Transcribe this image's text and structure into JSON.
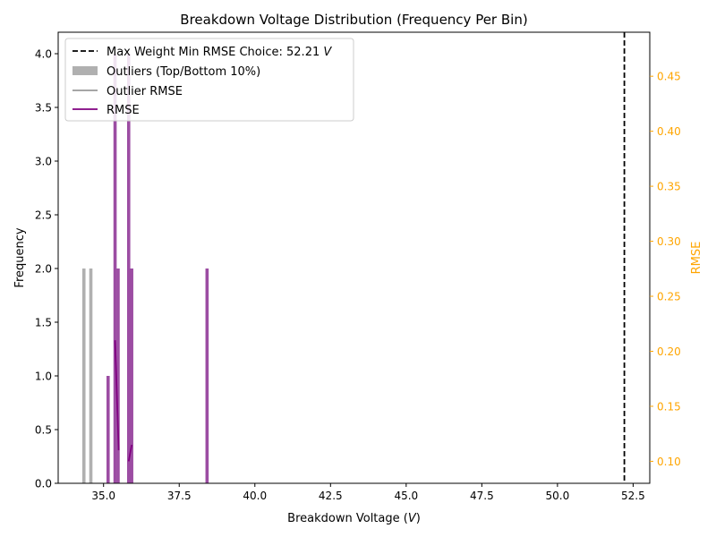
{
  "chart_data": {
    "type": "bar",
    "title": "Breakdown Voltage Distribution (Frequency Per Bin)",
    "xlabel": "Breakdown Voltage (",
    "xlabel_unit": "V",
    "xlabel_close": ")",
    "ylabel": "Frequency",
    "y2label": "RMSE",
    "xlim": [
      33.5,
      53.05
    ],
    "ylim": [
      0,
      4.2
    ],
    "y2lim": [
      0.08,
      0.49
    ],
    "x_ticks": [
      "35.0",
      "37.5",
      "40.0",
      "42.5",
      "45.0",
      "47.5",
      "50.0",
      "52.5"
    ],
    "y_ticks": [
      "0.0",
      "0.5",
      "1.0",
      "1.5",
      "2.0",
      "2.5",
      "3.0",
      "3.5",
      "4.0"
    ],
    "y2_ticks": [
      "0.10",
      "0.15",
      "0.20",
      "0.25",
      "0.30",
      "0.35",
      "0.40",
      "0.45"
    ],
    "colors": {
      "outlier": "#b0b0b0",
      "main": "#9c4da3",
      "outlier_rmse": "#999999",
      "rmse": "#800080",
      "choice": "#000000",
      "y2_axis": "#ffa500"
    },
    "outlier_bars": [
      {
        "x": 34.35,
        "value": 2
      },
      {
        "x": 34.58,
        "value": 2
      }
    ],
    "main_bars": [
      {
        "x": 35.15,
        "value": 1
      },
      {
        "x": 35.38,
        "value": 4
      },
      {
        "x": 35.48,
        "value": 2
      },
      {
        "x": 35.83,
        "value": 4
      },
      {
        "x": 35.93,
        "value": 2
      },
      {
        "x": 38.42,
        "value": 2
      }
    ],
    "rmse_segments": [
      [
        [
          35.38,
          0.21
        ],
        [
          35.5,
          0.11
        ]
      ],
      [
        [
          35.83,
          0.1
        ],
        [
          35.93,
          0.115
        ]
      ]
    ],
    "choice_value": 52.21,
    "legend_position": "upper-left",
    "legend": {
      "choice": "Max Weight Min RMSE Choice: 52.21 ",
      "choice_unit": "V",
      "outliers": "Outliers (Top/Bottom 10%)",
      "outlier_rmse": "Outlier RMSE",
      "rmse": "RMSE"
    }
  }
}
